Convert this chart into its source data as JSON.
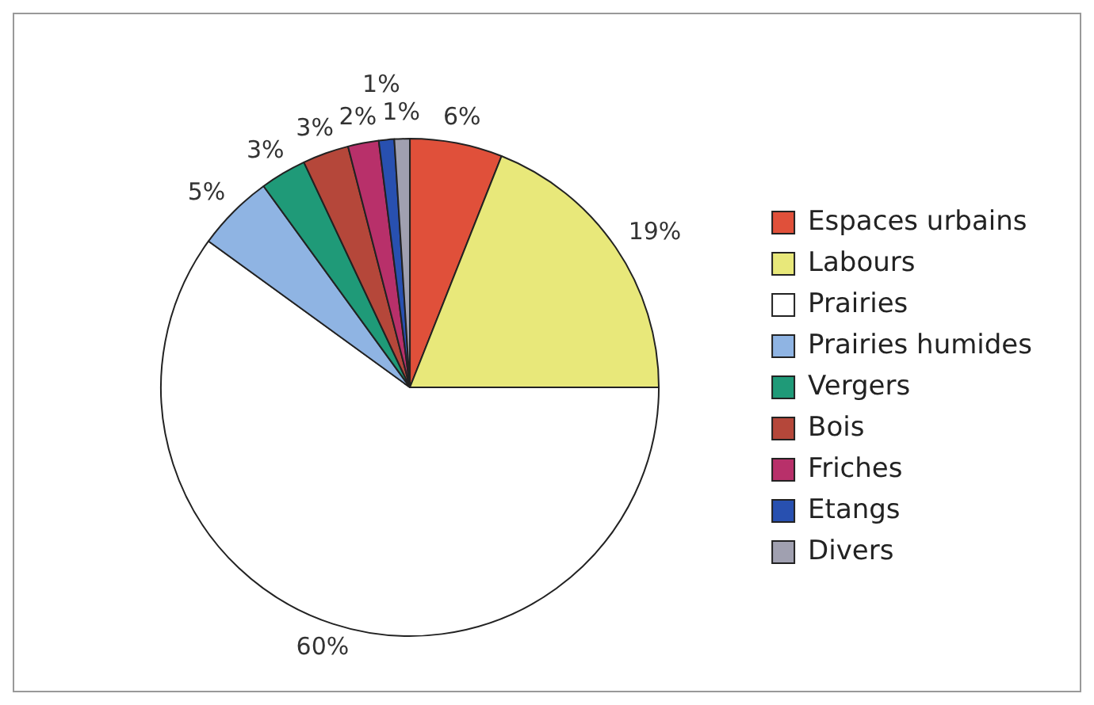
{
  "chart_data": {
    "type": "pie",
    "categories": [
      "Espaces urbains",
      "Labours",
      "Prairies",
      "Prairies humides",
      "Vergers",
      "Bois",
      "Friches",
      "Etangs",
      "Divers"
    ],
    "values": [
      6,
      19,
      60,
      5,
      3,
      3,
      2,
      1,
      1
    ],
    "value_labels": [
      "6%",
      "19%",
      "60%",
      "5%",
      "3%",
      "3%",
      "2%",
      "1%",
      "1%"
    ],
    "colors": [
      "#e0503a",
      "#e8e87a",
      "#ffffff",
      "#8fb4e3",
      "#1f9a78",
      "#b5473a",
      "#b8306a",
      "#2850b0",
      "#a0a0b0"
    ],
    "legend": "right"
  }
}
